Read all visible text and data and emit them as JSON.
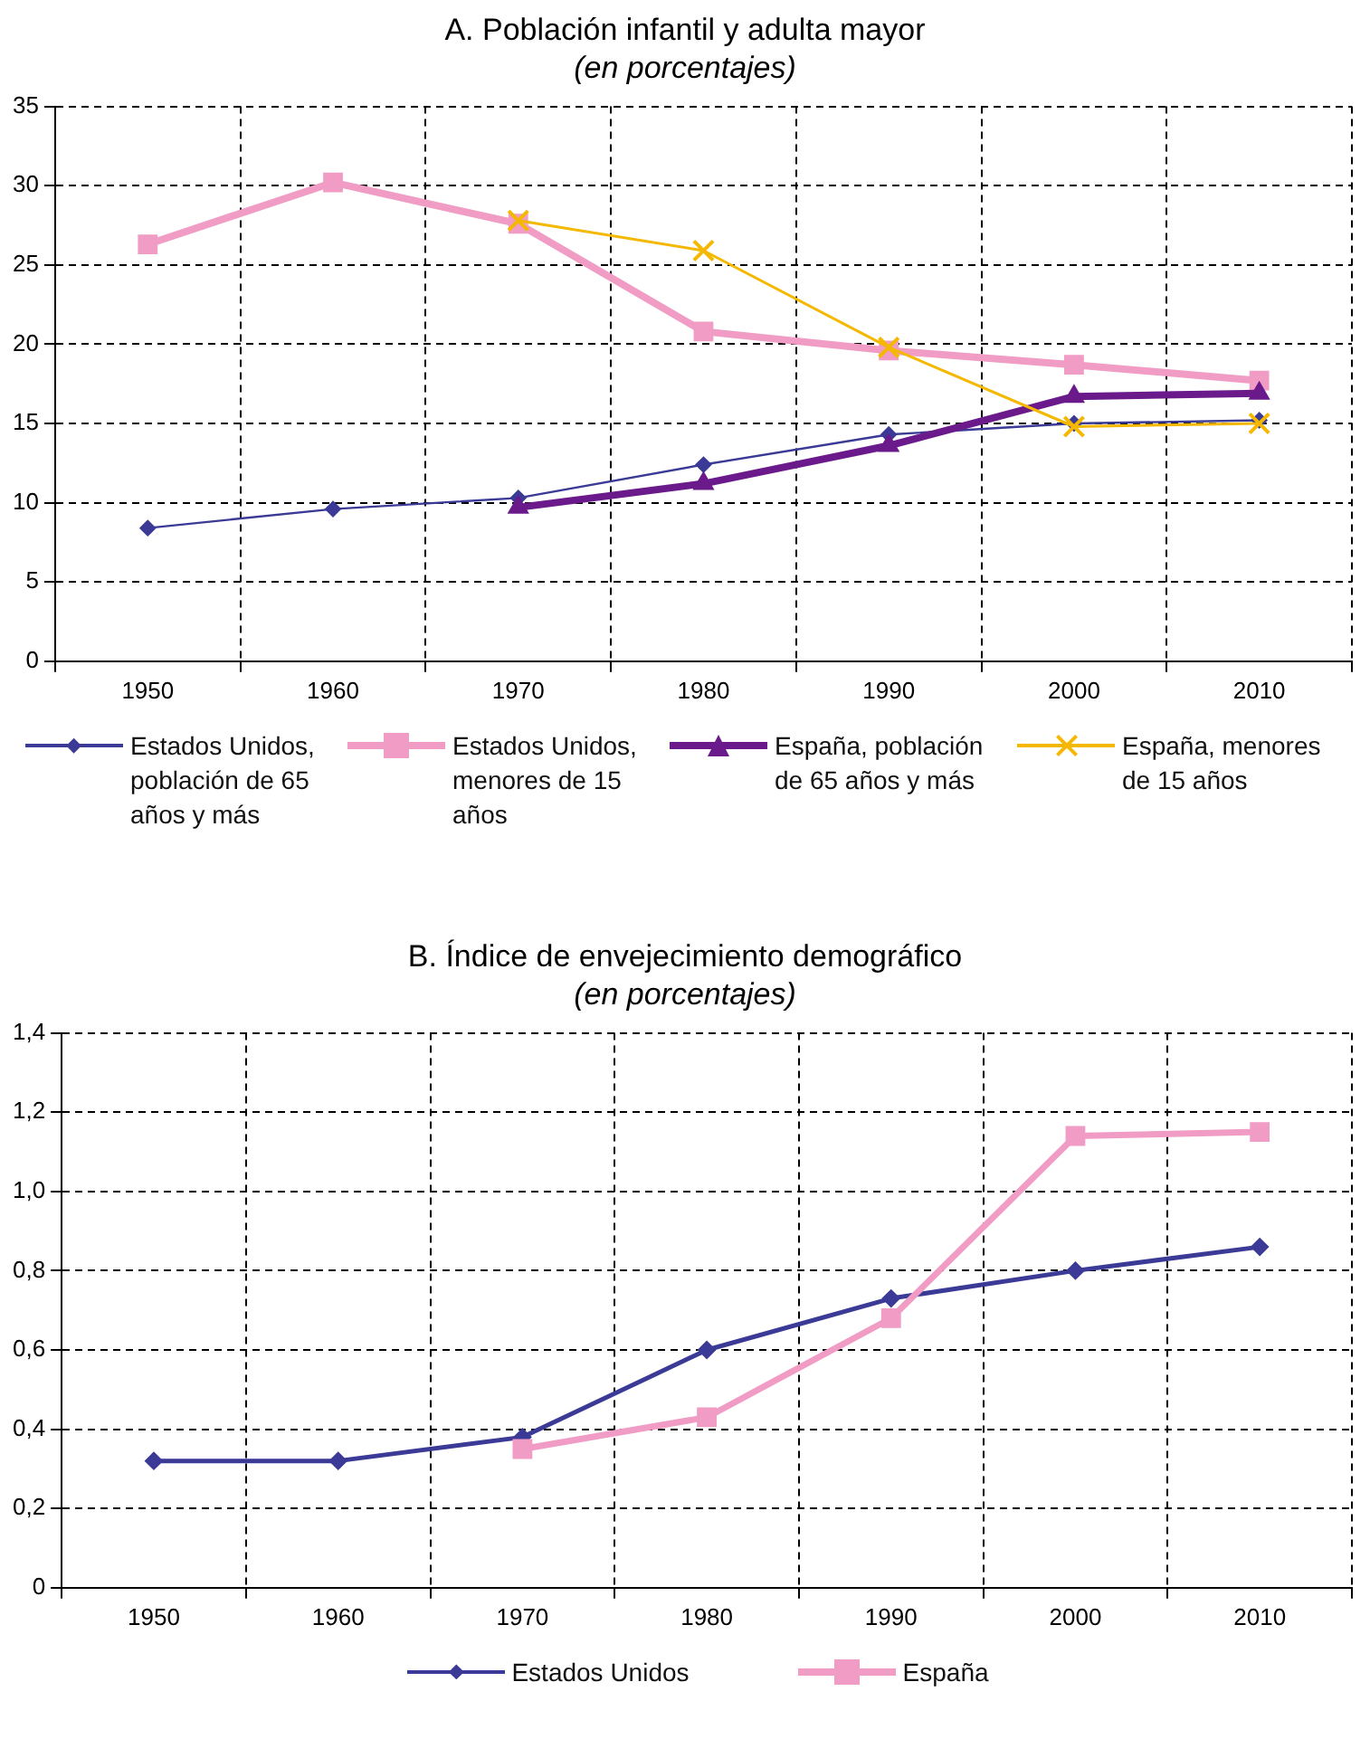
{
  "chart_data": [
    {
      "type": "line",
      "title": "A. Población infantil y adulta mayor",
      "subtitle": "(en porcentajes)",
      "categories": [
        "1950",
        "1960",
        "1970",
        "1980",
        "1990",
        "2000",
        "2010"
      ],
      "series": [
        {
          "name": "Estados Unidos, población de 65 años y más",
          "color": "#3b3a96",
          "marker": "diamond",
          "values": [
            8.4,
            9.6,
            10.3,
            12.4,
            14.3,
            15.0,
            15.2
          ]
        },
        {
          "name": "Estados Unidos, menores de 15 años",
          "color": "#f09cc4",
          "marker": "square",
          "values": [
            26.3,
            30.2,
            27.6,
            20.8,
            19.6,
            18.7,
            17.7
          ]
        },
        {
          "name": "España, población de 65 años y más",
          "color": "#6a1a8a",
          "marker": "triangle",
          "values": [
            null,
            null,
            9.7,
            11.2,
            13.6,
            16.7,
            16.9
          ]
        },
        {
          "name": "España, menores de 15 años",
          "color": "#f5b800",
          "marker": "cross",
          "values": [
            null,
            null,
            27.8,
            25.9,
            19.8,
            14.8,
            15.0
          ]
        }
      ],
      "ylim": [
        0,
        35
      ],
      "yticks": [
        0,
        5,
        10,
        15,
        20,
        25,
        30,
        35
      ],
      "grid": true,
      "legend": "bottom"
    },
    {
      "type": "line",
      "title": "B. Índice de envejecimiento demográfico",
      "subtitle": "(en porcentajes)",
      "categories": [
        "1950",
        "1960",
        "1970",
        "1980",
        "1990",
        "2000",
        "2010"
      ],
      "series": [
        {
          "name": "Estados Unidos",
          "color": "#3b3a96",
          "marker": "diamond",
          "values": [
            0.32,
            0.32,
            0.38,
            0.6,
            0.73,
            0.8,
            0.86
          ]
        },
        {
          "name": "España",
          "color": "#f09cc4",
          "marker": "square",
          "values": [
            null,
            null,
            0.35,
            0.43,
            0.68,
            1.14,
            1.15
          ]
        }
      ],
      "ylim": [
        0,
        1.4
      ],
      "yticks": [
        0,
        {
          "value": 0.2,
          "label": "0,2"
        },
        {
          "value": 0.4,
          "label": "0,4"
        },
        {
          "value": 0.6,
          "label": "0,6"
        },
        {
          "value": 0.8,
          "label": "0,8"
        },
        {
          "value": 1.0,
          "label": "1,0"
        },
        {
          "value": 1.2,
          "label": "1,2"
        },
        {
          "value": 1.4,
          "label": "1,4"
        }
      ],
      "grid": true,
      "legend": "bottom"
    }
  ]
}
